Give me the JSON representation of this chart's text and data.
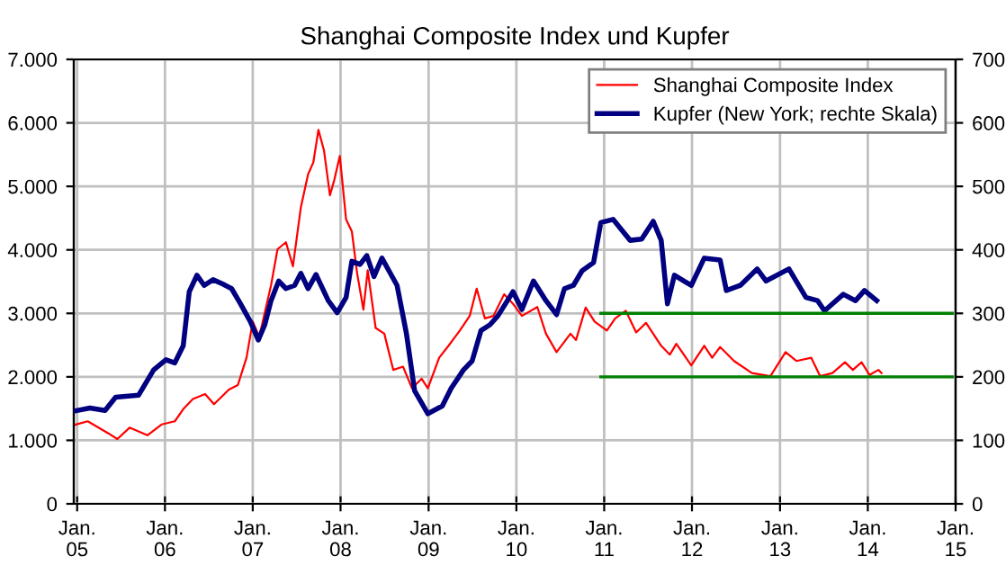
{
  "chart_data": {
    "type": "line",
    "title": "Shanghai Composite Index und Kupfer",
    "xlim": [
      "2005-01-01",
      "2015-01-01"
    ],
    "xticks": [
      {
        "value": "2005-01",
        "label": "Jan.\n05"
      },
      {
        "value": "2006-01",
        "label": "Jan.\n06"
      },
      {
        "value": "2007-01",
        "label": "Jan.\n07"
      },
      {
        "value": "2008-01",
        "label": "Jan.\n08"
      },
      {
        "value": "2009-01",
        "label": "Jan.\n09"
      },
      {
        "value": "2010-01",
        "label": "Jan.\n10"
      },
      {
        "value": "2011-01",
        "label": "Jan.\n11"
      },
      {
        "value": "2012-01",
        "label": "Jan.\n12"
      },
      {
        "value": "2013-01",
        "label": "Jan.\n13"
      },
      {
        "value": "2014-01",
        "label": "Jan.\n14"
      },
      {
        "value": "2015-01",
        "label": "Jan.\n15"
      }
    ],
    "ylim": [
      0,
      7000
    ],
    "yticks": [
      0,
      {
        "value": 1000,
        "label": "1.000"
      },
      {
        "value": 2000,
        "label": "2.000"
      },
      {
        "value": 3000,
        "label": "3.000"
      },
      {
        "value": 4000,
        "label": "4.000"
      },
      {
        "value": 5000,
        "label": "5.000"
      },
      {
        "value": 6000,
        "label": "6.000"
      },
      {
        "value": 7000,
        "label": "7.000"
      }
    ],
    "y2lim": [
      0,
      700
    ],
    "y2ticks": [
      0,
      100,
      200,
      300,
      400,
      500,
      600,
      700
    ],
    "grid": true,
    "legend": "top right",
    "series": [
      {
        "name": "Shanghai Composite Index",
        "color": "#ff0000",
        "x": [
          "2005-01-01",
          "2005-02-28",
          "2005-05-25",
          "2005-07-01",
          "2005-08-21",
          "2005-11-03",
          "2006-01-01",
          "2006-02-25",
          "2006-04-01",
          "2006-05-11",
          "2006-07-01",
          "2006-08-07",
          "2006-10-08",
          "2006-11-14",
          "2006-12-20",
          "2007-01-15",
          "2007-02-11",
          "2007-03-06",
          "2007-04-01",
          "2007-04-28",
          "2007-06-02",
          "2007-07-01",
          "2007-08-03",
          "2007-09-02",
          "2007-09-24",
          "2007-10-15",
          "2007-11-07",
          "2007-12-02",
          "2007-12-20",
          "2008-01-12",
          "2008-02-07",
          "2008-03-02",
          "2008-03-24",
          "2008-04-19",
          "2008-05-07",
          "2008-06-09",
          "2008-07-15",
          "2008-08-21",
          "2008-10-01",
          "2008-11-07",
          "2008-12-17",
          "2009-01-12",
          "2009-02-28",
          "2009-04-08",
          "2009-05-25",
          "2009-07-05",
          "2009-08-03",
          "2009-09-06",
          "2009-10-12",
          "2009-11-25",
          "2010-01-01",
          "2010-02-07",
          "2010-04-12",
          "2010-05-18",
          "2010-07-01",
          "2010-08-28",
          "2010-09-20",
          "2010-10-30",
          "2010-12-06",
          "2011-01-26",
          "2011-03-02",
          "2011-04-15",
          "2011-05-28",
          "2011-07-08",
          "2011-09-09",
          "2011-10-15",
          "2011-11-11",
          "2012-01-12",
          "2012-03-06",
          "2012-04-08",
          "2012-05-11",
          "2012-07-08",
          "2012-09-20",
          "2012-12-06",
          "2013-02-07",
          "2013-03-24",
          "2013-05-25",
          "2013-07-01",
          "2013-08-21",
          "2013-10-12",
          "2013-11-14",
          "2013-12-20",
          "2014-01-22",
          "2014-02-28",
          "2014-03-13"
        ],
        "values": [
          1240,
          1300,
          1110,
          1020,
          1200,
          1080,
          1250,
          1300,
          1490,
          1650,
          1730,
          1570,
          1800,
          1870,
          2300,
          2870,
          2630,
          3010,
          3440,
          4010,
          4120,
          3740,
          4670,
          5190,
          5380,
          5890,
          5570,
          4860,
          5100,
          5480,
          4480,
          4290,
          3630,
          3060,
          3680,
          2770,
          2680,
          2110,
          2160,
          1820,
          1970,
          1820,
          2300,
          2490,
          2730,
          2960,
          3390,
          2920,
          2960,
          3300,
          3150,
          2960,
          3100,
          2680,
          2390,
          2680,
          2580,
          3090,
          2870,
          2730,
          2920,
          3040,
          2700,
          2850,
          2490,
          2350,
          2520,
          2180,
          2490,
          2300,
          2470,
          2250,
          2060,
          2010,
          2390,
          2250,
          2300,
          2010,
          2060,
          2230,
          2110,
          2230,
          2030,
          2110,
          2060
        ]
      },
      {
        "name": "Kupfer (New York; rechte Skala)",
        "color": "#000080",
        "axis": "y2",
        "x": [
          "2005-01-01",
          "2005-03-09",
          "2005-05-11",
          "2005-06-24",
          "2005-09-27",
          "2005-11-29",
          "2006-01-19",
          "2006-02-25",
          "2006-04-01",
          "2006-04-26",
          "2006-05-28",
          "2006-06-27",
          "2006-08-03",
          "2006-09-13",
          "2006-10-19",
          "2006-11-25",
          "2007-01-05",
          "2007-02-07",
          "2007-03-06",
          "2007-04-01",
          "2007-05-03",
          "2007-06-02",
          "2007-07-08",
          "2007-08-03",
          "2007-09-02",
          "2007-10-05",
          "2007-11-25",
          "2008-01-01",
          "2008-02-07",
          "2008-03-02",
          "2008-04-05",
          "2008-05-03",
          "2008-06-02",
          "2008-07-05",
          "2008-09-06",
          "2008-10-15",
          "2008-11-18",
          "2009-01-12",
          "2009-03-13",
          "2009-04-19",
          "2009-06-09",
          "2009-07-15",
          "2009-08-21",
          "2009-09-27",
          "2009-10-30",
          "2010-01-01",
          "2010-02-07",
          "2010-03-27",
          "2010-05-18",
          "2010-07-01",
          "2010-08-03",
          "2010-09-09",
          "2010-10-15",
          "2010-12-02",
          "2011-01-01",
          "2011-02-21",
          "2011-05-03",
          "2011-06-20",
          "2011-08-07",
          "2011-09-09",
          "2011-10-05",
          "2011-11-03",
          "2012-01-12",
          "2012-03-06",
          "2012-05-11",
          "2012-06-06",
          "2012-08-03",
          "2012-10-12",
          "2012-11-18",
          "2013-02-21",
          "2013-05-03",
          "2013-06-20",
          "2013-07-19",
          "2013-10-05",
          "2013-11-25",
          "2014-01-01",
          "2014-02-21"
        ],
        "values": [
          146,
          151,
          147,
          168,
          171,
          211,
          227,
          222,
          249,
          334,
          360,
          344,
          353,
          346,
          339,
          315,
          287,
          258,
          282,
          320,
          351,
          339,
          344,
          363,
          339,
          361,
          320,
          301,
          325,
          382,
          377,
          391,
          358,
          387,
          344,
          268,
          178,
          142,
          154,
          182,
          211,
          225,
          273,
          282,
          296,
          334,
          306,
          351,
          320,
          298,
          339,
          344,
          367,
          380,
          443,
          448,
          415,
          417,
          445,
          415,
          315,
          360,
          344,
          387,
          384,
          336,
          344,
          370,
          351,
          370,
          325,
          320,
          304,
          330,
          320,
          336,
          320
        ]
      },
      {
        "color": "#008000",
        "axis": "y2",
        "x": [
          "2011-01-01",
          "2015-01-01"
        ],
        "values": [
          300,
          300
        ]
      },
      {
        "color": "#008000",
        "axis": "y2",
        "x": [
          "2011-01-01",
          "2015-01-01"
        ],
        "values": [
          200,
          200
        ]
      }
    ]
  }
}
